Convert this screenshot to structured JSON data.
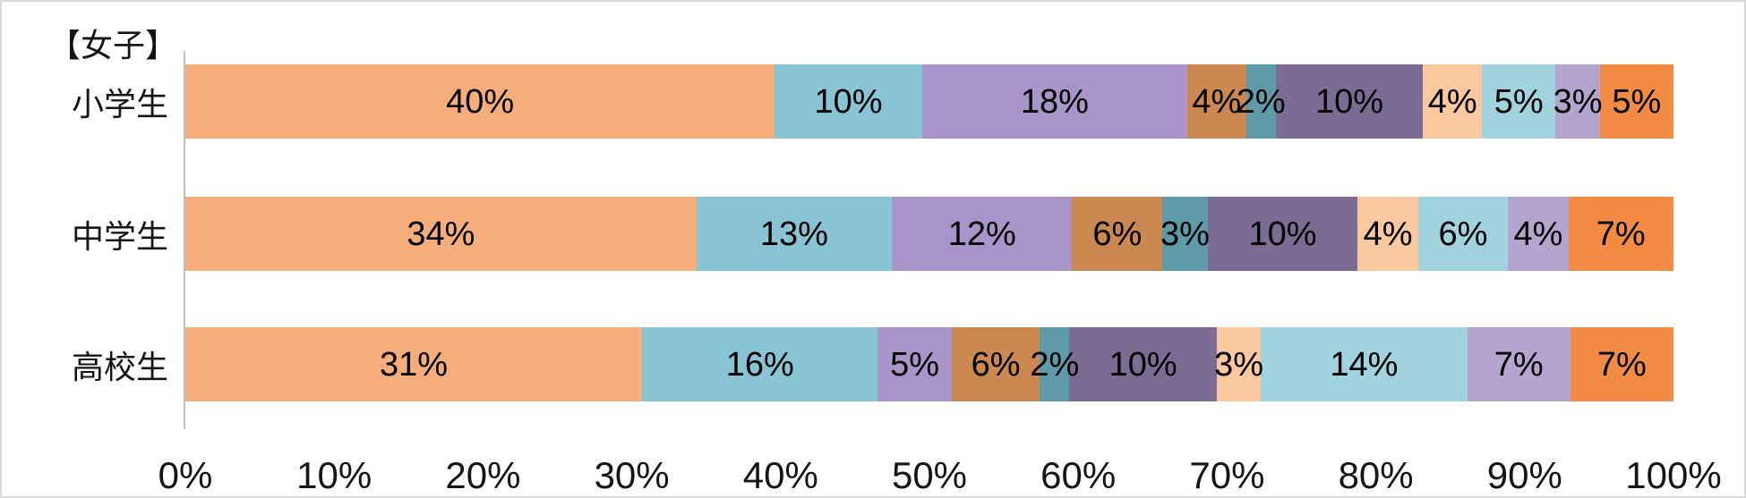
{
  "chart_data": {
    "type": "bar",
    "variant": "horizontal-stacked-100",
    "title": "【女子】",
    "categories": [
      "小学生",
      "中学生",
      "高校生"
    ],
    "series": [
      {
        "color": "#F5AE7B",
        "values": [
          40,
          34,
          31
        ]
      },
      {
        "color": "#89C4D5",
        "values": [
          10,
          13,
          16
        ]
      },
      {
        "color": "#A894C8",
        "values": [
          18,
          12,
          5
        ]
      },
      {
        "color": "#CB8850",
        "values": [
          4,
          6,
          6
        ]
      },
      {
        "color": "#5E9AA8",
        "values": [
          2,
          3,
          2
        ]
      },
      {
        "color": "#7B6C94",
        "values": [
          10,
          10,
          10
        ]
      },
      {
        "color": "#FAC89E",
        "values": [
          4,
          4,
          3
        ]
      },
      {
        "color": "#A0D3DD",
        "values": [
          5,
          6,
          14
        ]
      },
      {
        "color": "#B4A5CE",
        "values": [
          3,
          4,
          7
        ]
      },
      {
        "color": "#F28B44",
        "values": [
          5,
          7,
          7
        ]
      }
    ],
    "data_label_suffix": "%",
    "x_ticks": [
      "0%",
      "10%",
      "20%",
      "30%",
      "40%",
      "50%",
      "60%",
      "70%",
      "80%",
      "90%",
      "100%"
    ],
    "xlim": [
      0,
      100
    ],
    "legend": "none",
    "grid": "off",
    "axis_color": "#bfbfbf",
    "frame_color": "#d9d9d9",
    "background": "#ffffff",
    "label_color": "#000000"
  }
}
